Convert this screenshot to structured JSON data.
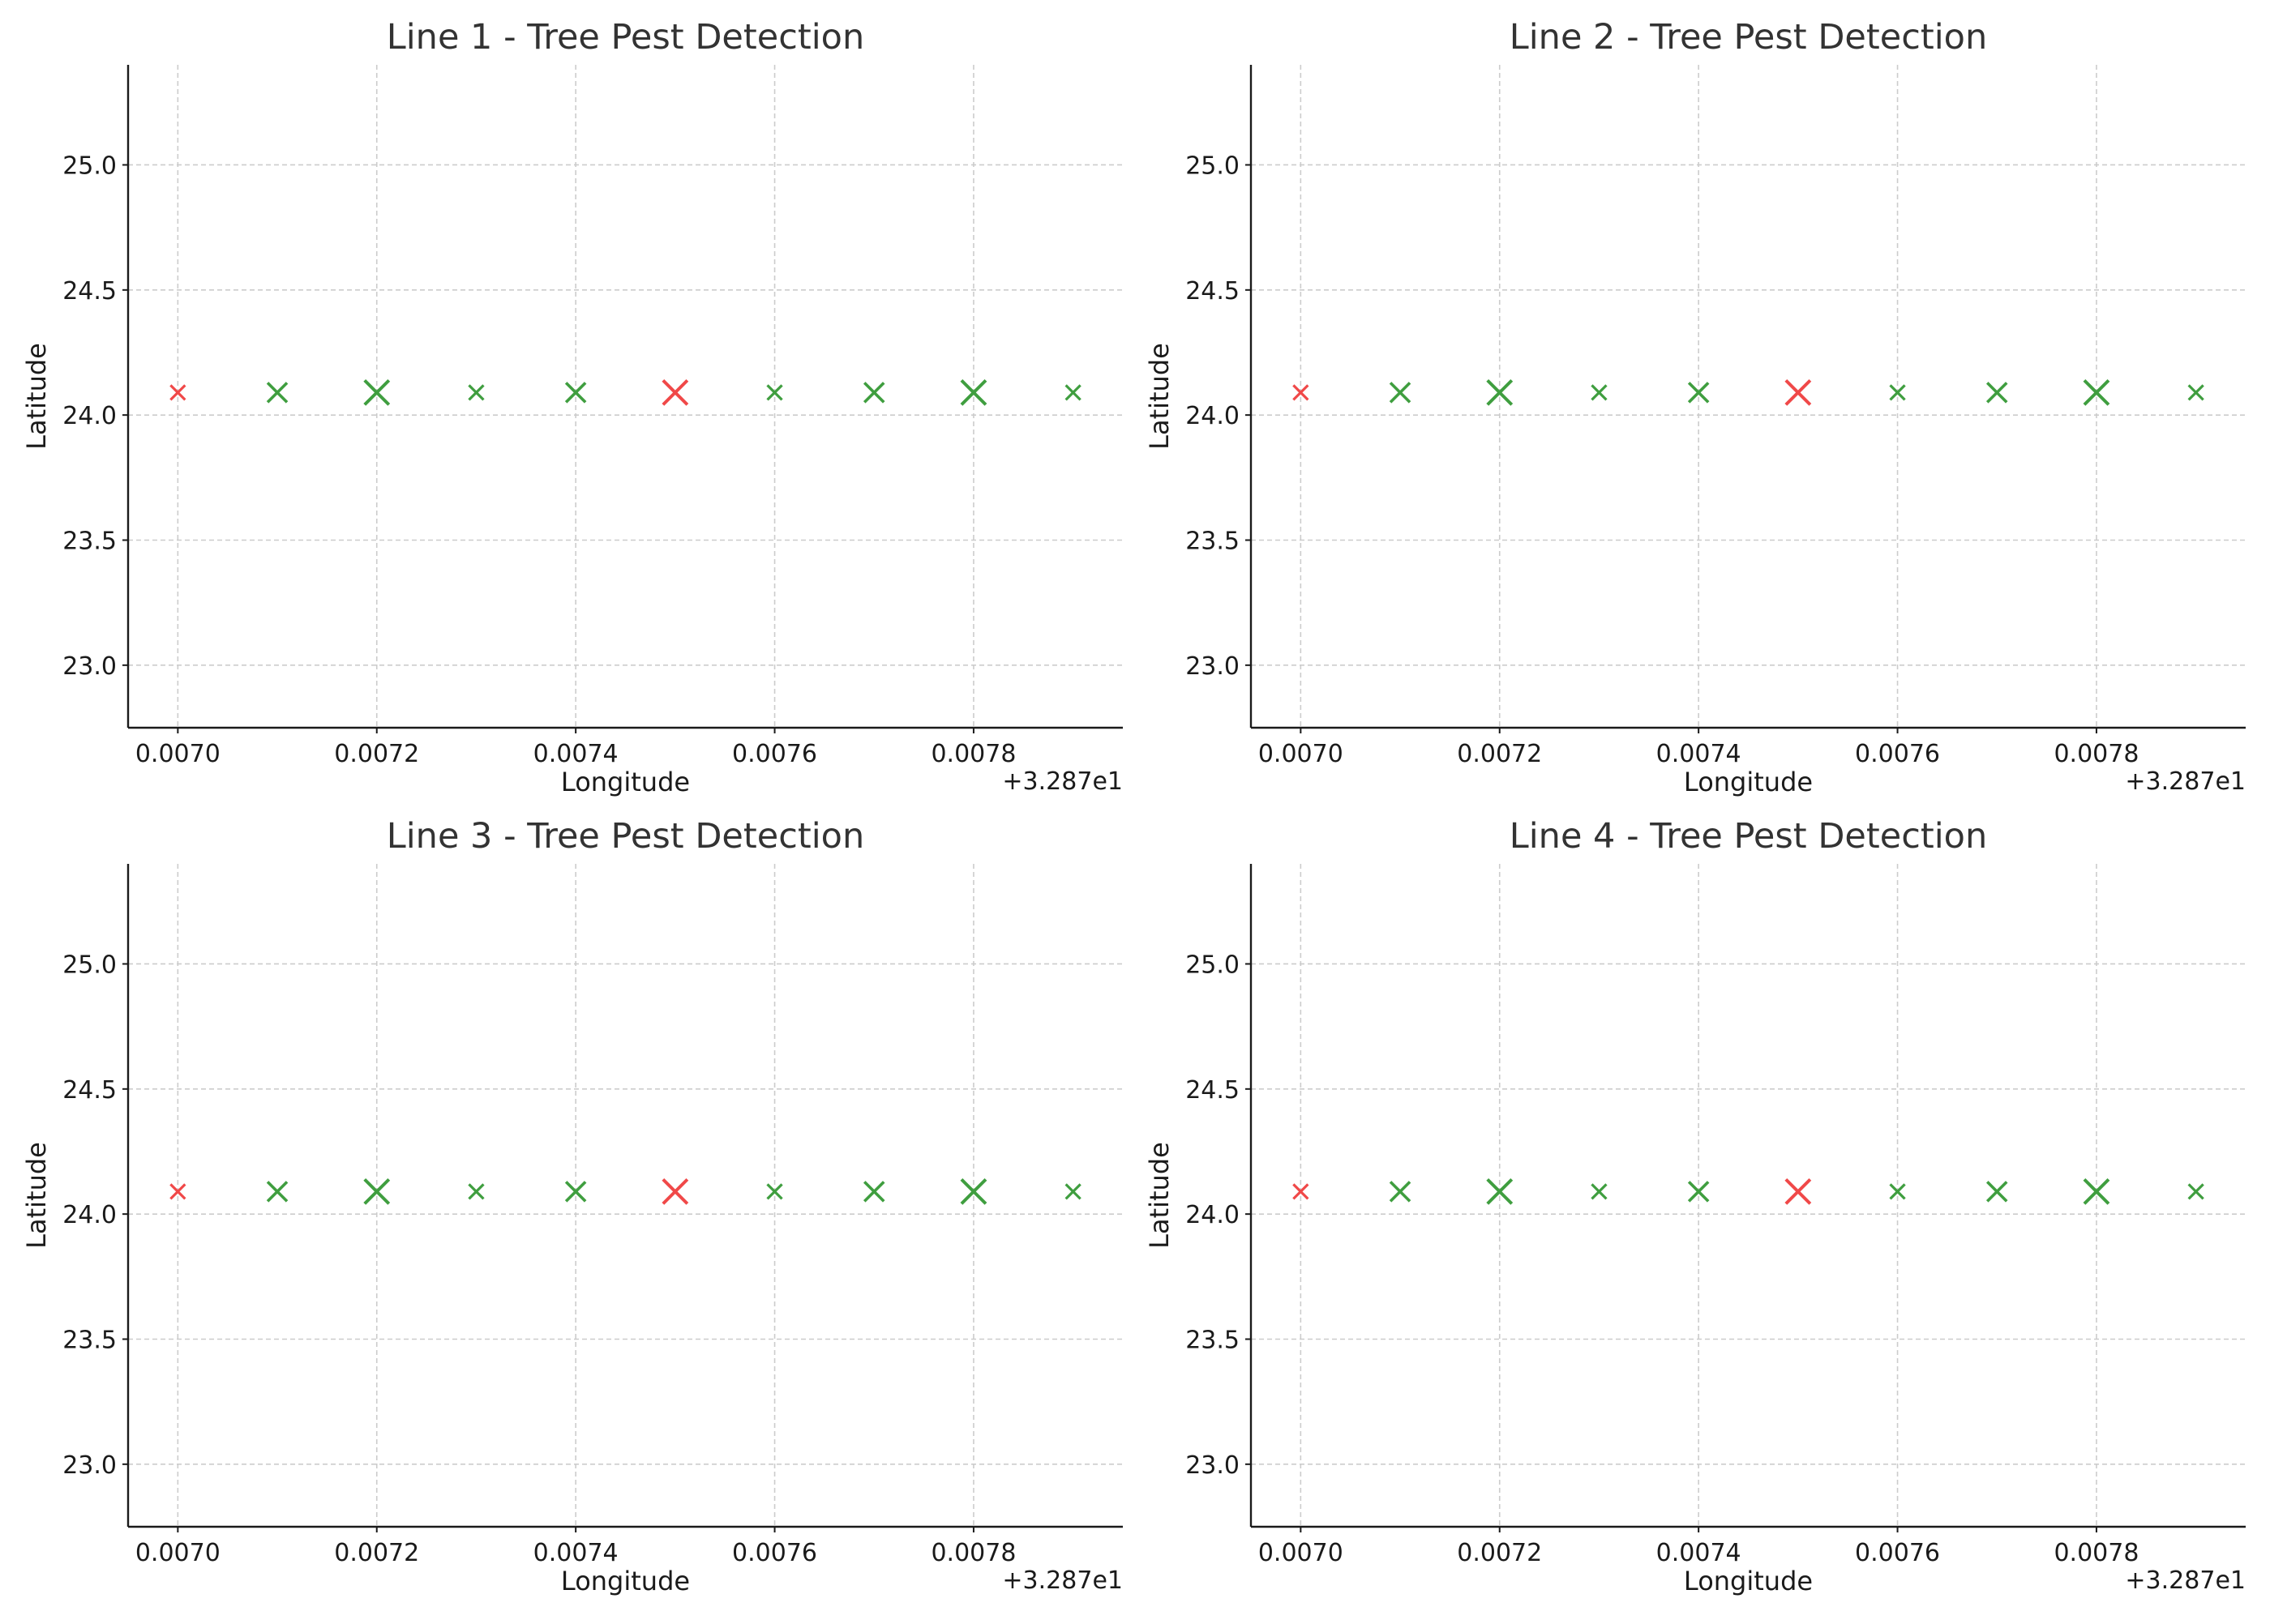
{
  "chart_data": [
    {
      "type": "scatter",
      "title": "Line 1 - Tree Pest Detection",
      "xlabel": "Longitude",
      "ylabel": "Latitude",
      "x_offset_label": "+3.287e1",
      "xlim": [
        0.00695,
        0.00795
      ],
      "ylim": [
        22.75,
        25.4
      ],
      "grid": true,
      "x_ticks": [
        0.007,
        0.0072,
        0.0074,
        0.0076,
        0.0078
      ],
      "x_tick_labels": [
        "0.0070",
        "0.0072",
        "0.0074",
        "0.0076",
        "0.0078"
      ],
      "y_ticks": [
        23.0,
        23.5,
        24.0,
        24.5,
        25.0
      ],
      "y_tick_labels": [
        "23.0",
        "23.5",
        "24.0",
        "24.5",
        "25.0"
      ],
      "marker": "x",
      "points": [
        {
          "x": 0.007,
          "y": 24.09,
          "status": "pest",
          "size": "small"
        },
        {
          "x": 0.0071,
          "y": 24.09,
          "status": "healthy",
          "size": "medium"
        },
        {
          "x": 0.0072,
          "y": 24.09,
          "status": "healthy",
          "size": "large"
        },
        {
          "x": 0.0073,
          "y": 24.09,
          "status": "healthy",
          "size": "small"
        },
        {
          "x": 0.0074,
          "y": 24.09,
          "status": "healthy",
          "size": "medium"
        },
        {
          "x": 0.0075,
          "y": 24.09,
          "status": "pest",
          "size": "large"
        },
        {
          "x": 0.0076,
          "y": 24.09,
          "status": "healthy",
          "size": "small"
        },
        {
          "x": 0.0077,
          "y": 24.09,
          "status": "healthy",
          "size": "medium"
        },
        {
          "x": 0.0078,
          "y": 24.09,
          "status": "healthy",
          "size": "large"
        },
        {
          "x": 0.0079,
          "y": 24.09,
          "status": "healthy",
          "size": "small"
        }
      ]
    },
    {
      "type": "scatter",
      "title": "Line 2 - Tree Pest Detection",
      "xlabel": "Longitude",
      "ylabel": "Latitude",
      "x_offset_label": "+3.287e1",
      "xlim": [
        0.00695,
        0.00795
      ],
      "ylim": [
        22.75,
        25.4
      ],
      "grid": true,
      "x_ticks": [
        0.007,
        0.0072,
        0.0074,
        0.0076,
        0.0078
      ],
      "x_tick_labels": [
        "0.0070",
        "0.0072",
        "0.0074",
        "0.0076",
        "0.0078"
      ],
      "y_ticks": [
        23.0,
        23.5,
        24.0,
        24.5,
        25.0
      ],
      "y_tick_labels": [
        "23.0",
        "23.5",
        "24.0",
        "24.5",
        "25.0"
      ],
      "marker": "x",
      "points": [
        {
          "x": 0.007,
          "y": 24.09,
          "status": "pest",
          "size": "small"
        },
        {
          "x": 0.0071,
          "y": 24.09,
          "status": "healthy",
          "size": "medium"
        },
        {
          "x": 0.0072,
          "y": 24.09,
          "status": "healthy",
          "size": "large"
        },
        {
          "x": 0.0073,
          "y": 24.09,
          "status": "healthy",
          "size": "small"
        },
        {
          "x": 0.0074,
          "y": 24.09,
          "status": "healthy",
          "size": "medium"
        },
        {
          "x": 0.0075,
          "y": 24.09,
          "status": "pest",
          "size": "large"
        },
        {
          "x": 0.0076,
          "y": 24.09,
          "status": "healthy",
          "size": "small"
        },
        {
          "x": 0.0077,
          "y": 24.09,
          "status": "healthy",
          "size": "medium"
        },
        {
          "x": 0.0078,
          "y": 24.09,
          "status": "healthy",
          "size": "large"
        },
        {
          "x": 0.0079,
          "y": 24.09,
          "status": "healthy",
          "size": "small"
        }
      ]
    },
    {
      "type": "scatter",
      "title": "Line 3 - Tree Pest Detection",
      "xlabel": "Longitude",
      "ylabel": "Latitude",
      "x_offset_label": "+3.287e1",
      "xlim": [
        0.00695,
        0.00795
      ],
      "ylim": [
        22.75,
        25.4
      ],
      "grid": true,
      "x_ticks": [
        0.007,
        0.0072,
        0.0074,
        0.0076,
        0.0078
      ],
      "x_tick_labels": [
        "0.0070",
        "0.0072",
        "0.0074",
        "0.0076",
        "0.0078"
      ],
      "y_ticks": [
        23.0,
        23.5,
        24.0,
        24.5,
        25.0
      ],
      "y_tick_labels": [
        "23.0",
        "23.5",
        "24.0",
        "24.5",
        "25.0"
      ],
      "marker": "x",
      "points": [
        {
          "x": 0.007,
          "y": 24.09,
          "status": "pest",
          "size": "small"
        },
        {
          "x": 0.0071,
          "y": 24.09,
          "status": "healthy",
          "size": "medium"
        },
        {
          "x": 0.0072,
          "y": 24.09,
          "status": "healthy",
          "size": "large"
        },
        {
          "x": 0.0073,
          "y": 24.09,
          "status": "healthy",
          "size": "small"
        },
        {
          "x": 0.0074,
          "y": 24.09,
          "status": "healthy",
          "size": "medium"
        },
        {
          "x": 0.0075,
          "y": 24.09,
          "status": "pest",
          "size": "large"
        },
        {
          "x": 0.0076,
          "y": 24.09,
          "status": "healthy",
          "size": "small"
        },
        {
          "x": 0.0077,
          "y": 24.09,
          "status": "healthy",
          "size": "medium"
        },
        {
          "x": 0.0078,
          "y": 24.09,
          "status": "healthy",
          "size": "large"
        },
        {
          "x": 0.0079,
          "y": 24.09,
          "status": "healthy",
          "size": "small"
        }
      ]
    },
    {
      "type": "scatter",
      "title": "Line 4 - Tree Pest Detection",
      "xlabel": "Longitude",
      "ylabel": "Latitude",
      "x_offset_label": "+3.287e1",
      "xlim": [
        0.00695,
        0.00795
      ],
      "ylim": [
        22.75,
        25.4
      ],
      "grid": true,
      "x_ticks": [
        0.007,
        0.0072,
        0.0074,
        0.0076,
        0.0078
      ],
      "x_tick_labels": [
        "0.0070",
        "0.0072",
        "0.0074",
        "0.0076",
        "0.0078"
      ],
      "y_ticks": [
        23.0,
        23.5,
        24.0,
        24.5,
        25.0
      ],
      "y_tick_labels": [
        "23.0",
        "23.5",
        "24.0",
        "24.5",
        "25.0"
      ],
      "marker": "x",
      "points": [
        {
          "x": 0.007,
          "y": 24.09,
          "status": "pest",
          "size": "small"
        },
        {
          "x": 0.0071,
          "y": 24.09,
          "status": "healthy",
          "size": "medium"
        },
        {
          "x": 0.0072,
          "y": 24.09,
          "status": "healthy",
          "size": "large"
        },
        {
          "x": 0.0073,
          "y": 24.09,
          "status": "healthy",
          "size": "small"
        },
        {
          "x": 0.0074,
          "y": 24.09,
          "status": "healthy",
          "size": "medium"
        },
        {
          "x": 0.0075,
          "y": 24.09,
          "status": "pest",
          "size": "large"
        },
        {
          "x": 0.0076,
          "y": 24.09,
          "status": "healthy",
          "size": "small"
        },
        {
          "x": 0.0077,
          "y": 24.09,
          "status": "healthy",
          "size": "medium"
        },
        {
          "x": 0.0078,
          "y": 24.09,
          "status": "healthy",
          "size": "large"
        },
        {
          "x": 0.0079,
          "y": 24.09,
          "status": "healthy",
          "size": "small"
        }
      ]
    }
  ],
  "colors": {
    "healthy": "#3f9e3f",
    "pest": "#f04848"
  }
}
